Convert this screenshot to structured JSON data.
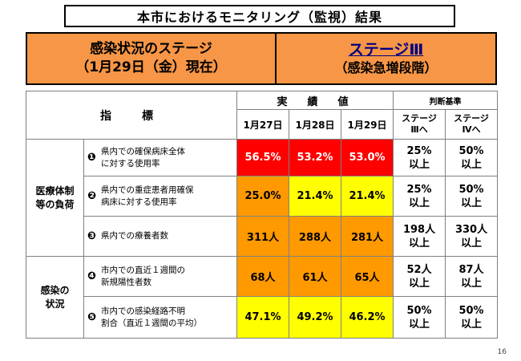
{
  "title": "本市におけるモニタリング（監視）結果",
  "banner": {
    "left_line1": "感染状況のステージ",
    "left_line2": "（1月29日（金）現在）",
    "right_line1": "ステージⅢ",
    "right_line2": "（感染急増段階）"
  },
  "table": {
    "header_indicator": "指　標",
    "header_results": "実　績　値",
    "header_judgement": "判断基準",
    "dates": [
      "1月27日",
      "1月28日",
      "1月29日"
    ],
    "stage3_line1": "ステージ",
    "stage3_line2": "Ⅲへ",
    "stage4_line1": "ステージ",
    "stage4_line2": "Ⅳへ",
    "category_medical_1": "医療体制",
    "category_medical_2": "等の負荷",
    "category_infection_1": "感染の",
    "category_infection_2": "状況",
    "rows": [
      {
        "num": "❶",
        "line1": "県内での確保病床全体",
        "line2": "に対する使用率",
        "v1": "56.5%",
        "v2": "53.2%",
        "v3": "53.0%",
        "s3a": "25%",
        "s3b": "以上",
        "s4a": "50%",
        "s4b": "以上",
        "colors": [
          "red",
          "red",
          "red"
        ]
      },
      {
        "num": "❷",
        "line1": "県内での重症患者用確保",
        "line2": "病床に対する使用率",
        "v1": "25.0%",
        "v2": "21.4%",
        "v3": "21.4%",
        "s3a": "25%",
        "s3b": "以上",
        "s4a": "50%",
        "s4b": "以上",
        "colors": [
          "orange",
          "yellow",
          "yellow"
        ]
      },
      {
        "num": "❸",
        "line1": "県内での療養者数",
        "line2": "",
        "v1": "311人",
        "v2": "288人",
        "v3": "281人",
        "s3a": "198人",
        "s3b": "以上",
        "s4a": "330人",
        "s4b": "以上",
        "colors": [
          "orange",
          "orange",
          "orange"
        ]
      },
      {
        "num": "❹",
        "line1": "市内での直近１週間の",
        "line2": "新規陽性者数",
        "v1": "68人",
        "v2": "61人",
        "v3": "65人",
        "s3a": "52人",
        "s3b": "以上",
        "s4a": "87人",
        "s4b": "以上",
        "colors": [
          "orange",
          "orange",
          "orange"
        ]
      },
      {
        "num": "❺",
        "line1": "市内での感染経路不明",
        "line2": "割合（直近１週間の平均）",
        "v1": "47.1%",
        "v2": "49.2%",
        "v3": "46.2%",
        "s3a": "50%",
        "s3b": "以上",
        "s4a": "50%",
        "s4b": "以上",
        "colors": [
          "yellow",
          "yellow",
          "yellow"
        ]
      }
    ]
  },
  "colors": {
    "banner": "#f79646",
    "red": "#ff0000",
    "orange": "#ff9900",
    "yellow": "#ffff00",
    "stage_text": "#000080"
  },
  "page_number": "16"
}
